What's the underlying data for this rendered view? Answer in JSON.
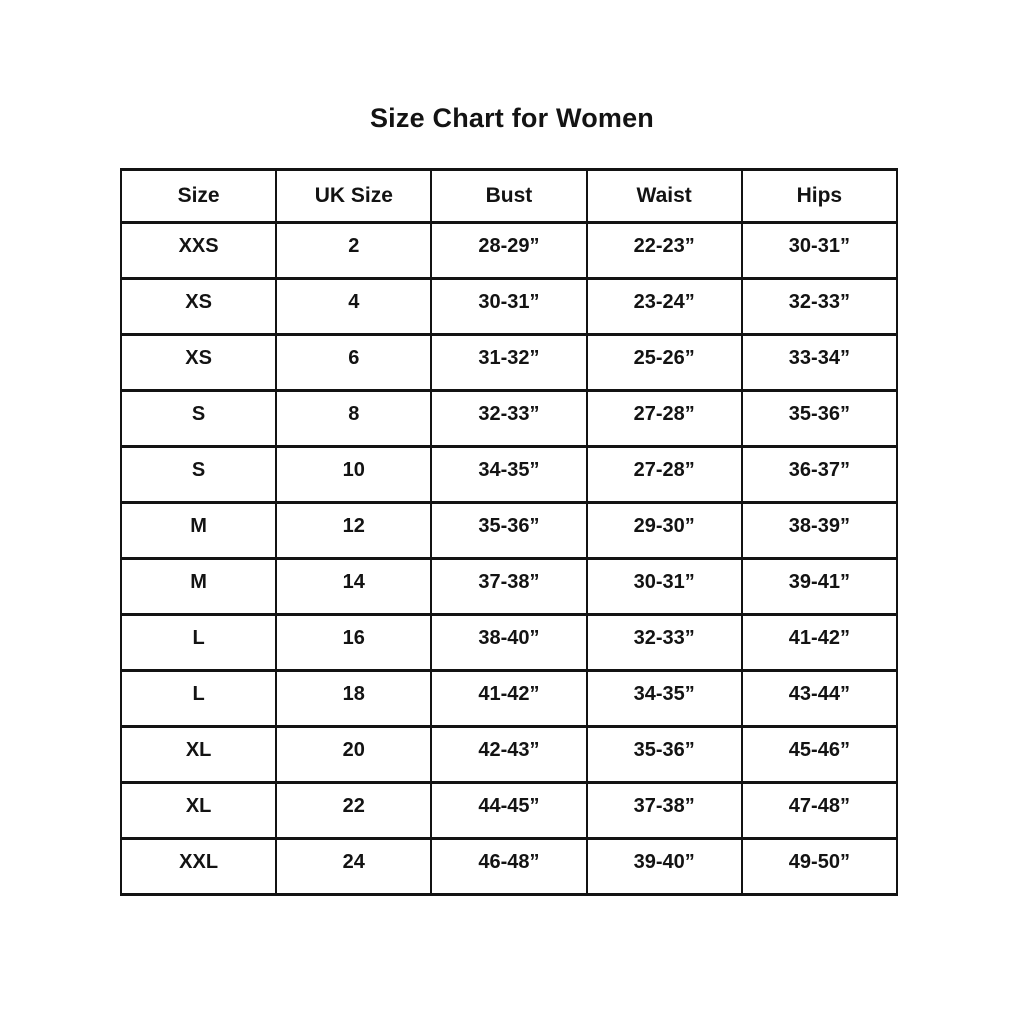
{
  "page": {
    "title": "Size Chart for Women"
  },
  "table": {
    "headers": [
      "Size",
      "UK Size",
      "Bust",
      "Waist",
      "Hips"
    ],
    "rows": [
      [
        "XXS",
        "2",
        "28-29”",
        "22-23”",
        "30-31”"
      ],
      [
        "XS",
        "4",
        "30-31”",
        "23-24”",
        "32-33”"
      ],
      [
        "XS",
        "6",
        "31-32”",
        "25-26”",
        "33-34”"
      ],
      [
        "S",
        "8",
        "32-33”",
        "27-28”",
        "35-36”"
      ],
      [
        "S",
        "10",
        "34-35”",
        "27-28”",
        "36-37”"
      ],
      [
        "M",
        "12",
        "35-36”",
        "29-30”",
        "38-39”"
      ],
      [
        "M",
        "14",
        "37-38”",
        "30-31”",
        "39-41”"
      ],
      [
        "L",
        "16",
        "38-40”",
        "32-33”",
        "41-42”"
      ],
      [
        "L",
        "18",
        "41-42”",
        "34-35”",
        "43-44”"
      ],
      [
        "XL",
        "20",
        "42-43”",
        "35-36”",
        "45-46”"
      ],
      [
        "XL",
        "22",
        "44-45”",
        "37-38”",
        "47-48”"
      ],
      [
        "XXL",
        "24",
        "46-48”",
        "39-40”",
        "49-50”"
      ]
    ]
  },
  "chart_data": {
    "type": "table",
    "title": "Size Chart for Women",
    "columns": [
      "Size",
      "UK Size",
      "Bust",
      "Waist",
      "Hips"
    ],
    "rows": [
      [
        "XXS",
        2,
        "28-29 in",
        "22-23 in",
        "30-31 in"
      ],
      [
        "XS",
        4,
        "30-31 in",
        "23-24 in",
        "32-33 in"
      ],
      [
        "XS",
        6,
        "31-32 in",
        "25-26 in",
        "33-34 in"
      ],
      [
        "S",
        8,
        "32-33 in",
        "27-28 in",
        "35-36 in"
      ],
      [
        "S",
        10,
        "34-35 in",
        "27-28 in",
        "36-37 in"
      ],
      [
        "M",
        12,
        "35-36 in",
        "29-30 in",
        "38-39 in"
      ],
      [
        "M",
        14,
        "37-38 in",
        "30-31 in",
        "39-41 in"
      ],
      [
        "L",
        16,
        "38-40 in",
        "32-33 in",
        "41-42 in"
      ],
      [
        "L",
        18,
        "41-42 in",
        "34-35 in",
        "43-44 in"
      ],
      [
        "XL",
        20,
        "42-43 in",
        "35-36 in",
        "45-46 in"
      ],
      [
        "XL",
        22,
        "44-45 in",
        "37-38 in",
        "47-48 in"
      ],
      [
        "XXL",
        24,
        "46-48 in",
        "39-40 in",
        "49-50 in"
      ]
    ],
    "layout": {
      "grid": true,
      "legend": "none"
    }
  },
  "colors": {
    "text": "#131313",
    "border": "#131313",
    "background": "#ffffff"
  }
}
